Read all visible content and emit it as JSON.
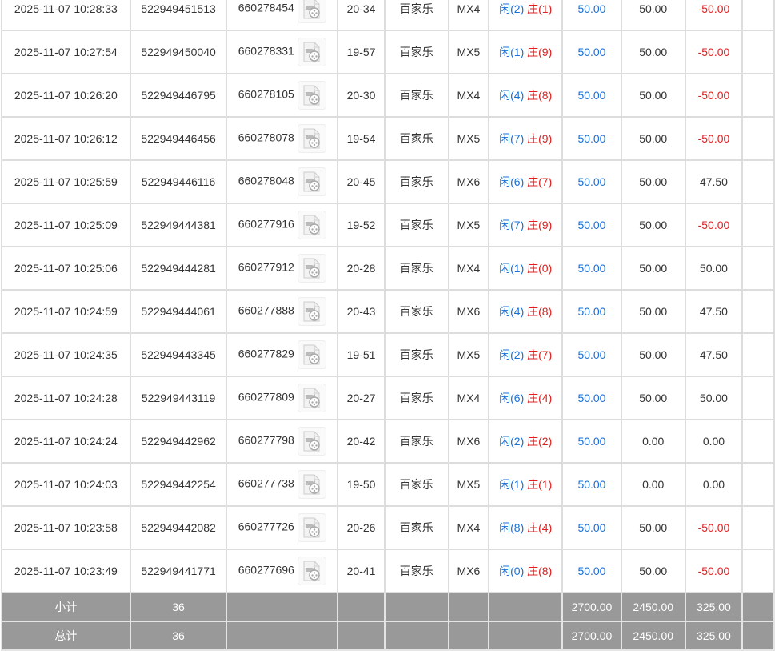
{
  "rows": [
    {
      "time": "2025-11-07 10:28:33",
      "bet_id": "522949451513",
      "round": "660278454",
      "shoe": "20-34",
      "game": "百家乐",
      "table": "MX4",
      "player": "闲(2)",
      "banker": "庄(1)",
      "bet": "50.00",
      "valid": "50.00",
      "win": "-50.00",
      "win_negative": true
    },
    {
      "time": "2025-11-07 10:27:54",
      "bet_id": "522949450040",
      "round": "660278331",
      "shoe": "19-57",
      "game": "百家乐",
      "table": "MX5",
      "player": "闲(1)",
      "banker": "庄(9)",
      "bet": "50.00",
      "valid": "50.00",
      "win": "-50.00",
      "win_negative": true
    },
    {
      "time": "2025-11-07 10:26:20",
      "bet_id": "522949446795",
      "round": "660278105",
      "shoe": "20-30",
      "game": "百家乐",
      "table": "MX4",
      "player": "闲(4)",
      "banker": "庄(8)",
      "bet": "50.00",
      "valid": "50.00",
      "win": "-50.00",
      "win_negative": true
    },
    {
      "time": "2025-11-07 10:26:12",
      "bet_id": "522949446456",
      "round": "660278078",
      "shoe": "19-54",
      "game": "百家乐",
      "table": "MX5",
      "player": "闲(7)",
      "banker": "庄(9)",
      "bet": "50.00",
      "valid": "50.00",
      "win": "-50.00",
      "win_negative": true
    },
    {
      "time": "2025-11-07 10:25:59",
      "bet_id": "522949446116",
      "round": "660278048",
      "shoe": "20-45",
      "game": "百家乐",
      "table": "MX6",
      "player": "闲(6)",
      "banker": "庄(7)",
      "bet": "50.00",
      "valid": "50.00",
      "win": "47.50",
      "win_negative": false
    },
    {
      "time": "2025-11-07 10:25:09",
      "bet_id": "522949444381",
      "round": "660277916",
      "shoe": "19-52",
      "game": "百家乐",
      "table": "MX5",
      "player": "闲(7)",
      "banker": "庄(9)",
      "bet": "50.00",
      "valid": "50.00",
      "win": "-50.00",
      "win_negative": true
    },
    {
      "time": "2025-11-07 10:25:06",
      "bet_id": "522949444281",
      "round": "660277912",
      "shoe": "20-28",
      "game": "百家乐",
      "table": "MX4",
      "player": "闲(1)",
      "banker": "庄(0)",
      "bet": "50.00",
      "valid": "50.00",
      "win": "50.00",
      "win_negative": false
    },
    {
      "time": "2025-11-07 10:24:59",
      "bet_id": "522949444061",
      "round": "660277888",
      "shoe": "20-43",
      "game": "百家乐",
      "table": "MX6",
      "player": "闲(4)",
      "banker": "庄(8)",
      "bet": "50.00",
      "valid": "50.00",
      "win": "47.50",
      "win_negative": false
    },
    {
      "time": "2025-11-07 10:24:35",
      "bet_id": "522949443345",
      "round": "660277829",
      "shoe": "19-51",
      "game": "百家乐",
      "table": "MX5",
      "player": "闲(2)",
      "banker": "庄(7)",
      "bet": "50.00",
      "valid": "50.00",
      "win": "47.50",
      "win_negative": false
    },
    {
      "time": "2025-11-07 10:24:28",
      "bet_id": "522949443119",
      "round": "660277809",
      "shoe": "20-27",
      "game": "百家乐",
      "table": "MX4",
      "player": "闲(6)",
      "banker": "庄(4)",
      "bet": "50.00",
      "valid": "50.00",
      "win": "50.00",
      "win_negative": false
    },
    {
      "time": "2025-11-07 10:24:24",
      "bet_id": "522949442962",
      "round": "660277798",
      "shoe": "20-42",
      "game": "百家乐",
      "table": "MX6",
      "player": "闲(2)",
      "banker": "庄(2)",
      "bet": "50.00",
      "valid": "0.00",
      "win": "0.00",
      "win_negative": false
    },
    {
      "time": "2025-11-07 10:24:03",
      "bet_id": "522949442254",
      "round": "660277738",
      "shoe": "19-50",
      "game": "百家乐",
      "table": "MX5",
      "player": "闲(1)",
      "banker": "庄(1)",
      "bet": "50.00",
      "valid": "0.00",
      "win": "0.00",
      "win_negative": false
    },
    {
      "time": "2025-11-07 10:23:58",
      "bet_id": "522949442082",
      "round": "660277726",
      "shoe": "20-26",
      "game": "百家乐",
      "table": "MX4",
      "player": "闲(8)",
      "banker": "庄(4)",
      "bet": "50.00",
      "valid": "50.00",
      "win": "-50.00",
      "win_negative": true
    },
    {
      "time": "2025-11-07 10:23:49",
      "bet_id": "522949441771",
      "round": "660277696",
      "shoe": "20-41",
      "game": "百家乐",
      "table": "MX6",
      "player": "闲(0)",
      "banker": "庄(8)",
      "bet": "50.00",
      "valid": "50.00",
      "win": "-50.00",
      "win_negative": true
    }
  ],
  "footer": [
    {
      "label": "小计",
      "count": "36",
      "bet": "2700.00",
      "valid": "2450.00",
      "win": "325.00"
    },
    {
      "label": "总计",
      "count": "36",
      "bet": "2700.00",
      "valid": "2450.00",
      "win": "325.00"
    }
  ],
  "colors": {
    "player": "#1a6fd6",
    "banker": "#e02020",
    "negative": "#e02020",
    "footer_bg": "#999999"
  },
  "icons": {
    "video": "video-file-icon"
  }
}
